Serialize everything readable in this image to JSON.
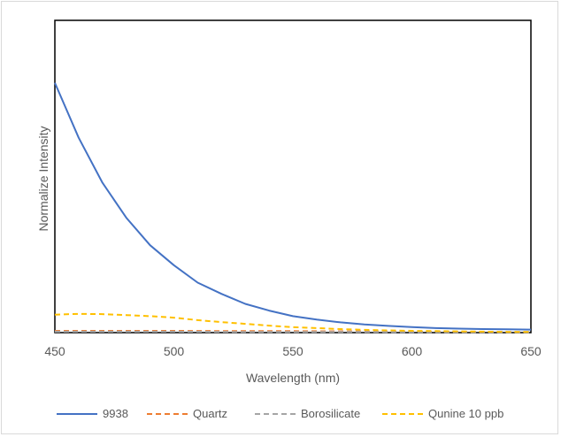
{
  "chart_data": {
    "type": "line",
    "title": "",
    "xlabel": "Wavelength (nm)",
    "ylabel": "Normalize Intensity",
    "xlim": [
      450,
      650
    ],
    "ylim": [
      0,
      1.25
    ],
    "x_ticks": [
      "450",
      "500",
      "550",
      "600",
      "650"
    ],
    "y_ticks": [],
    "grid": false,
    "legend_position": "bottom",
    "series": [
      {
        "name": "9938",
        "color": "#4472C4",
        "dash": "solid",
        "x": [
          450,
          460,
          470,
          480,
          490,
          500,
          510,
          520,
          530,
          540,
          550,
          560,
          570,
          580,
          590,
          600,
          610,
          620,
          630,
          640,
          650
        ],
        "y": [
          1.0,
          0.78,
          0.6,
          0.46,
          0.35,
          0.27,
          0.2,
          0.155,
          0.115,
          0.088,
          0.066,
          0.052,
          0.041,
          0.033,
          0.027,
          0.022,
          0.018,
          0.016,
          0.014,
          0.013,
          0.012
        ]
      },
      {
        "name": "Quartz",
        "color": "#ED7D31",
        "dash": "dashed",
        "x": [
          450,
          475,
          500,
          525,
          550,
          575,
          600,
          625,
          650
        ],
        "y": [
          0.007,
          0.007,
          0.007,
          0.006,
          0.006,
          0.005,
          0.004,
          0.003,
          0.002
        ]
      },
      {
        "name": "Borosilicate",
        "color": "#A5A5A5",
        "dash": "dashed",
        "x": [
          450,
          475,
          500,
          525,
          550,
          575,
          600,
          625,
          650
        ],
        "y": [
          0.004,
          0.004,
          0.004,
          0.003,
          0.003,
          0.003,
          0.002,
          0.002,
          0.002
        ]
      },
      {
        "name": "Qunine 10 ppb",
        "color": "#FFC000",
        "dash": "dashed",
        "x": [
          450,
          460,
          470,
          480,
          490,
          500,
          510,
          520,
          530,
          540,
          550,
          560,
          570,
          580,
          590,
          600,
          610,
          620,
          630,
          640,
          650
        ],
        "y": [
          0.072,
          0.075,
          0.074,
          0.07,
          0.066,
          0.06,
          0.05,
          0.042,
          0.035,
          0.028,
          0.022,
          0.018,
          0.014,
          0.011,
          0.009,
          0.007,
          0.006,
          0.005,
          0.004,
          0.003,
          0.003
        ]
      }
    ]
  }
}
